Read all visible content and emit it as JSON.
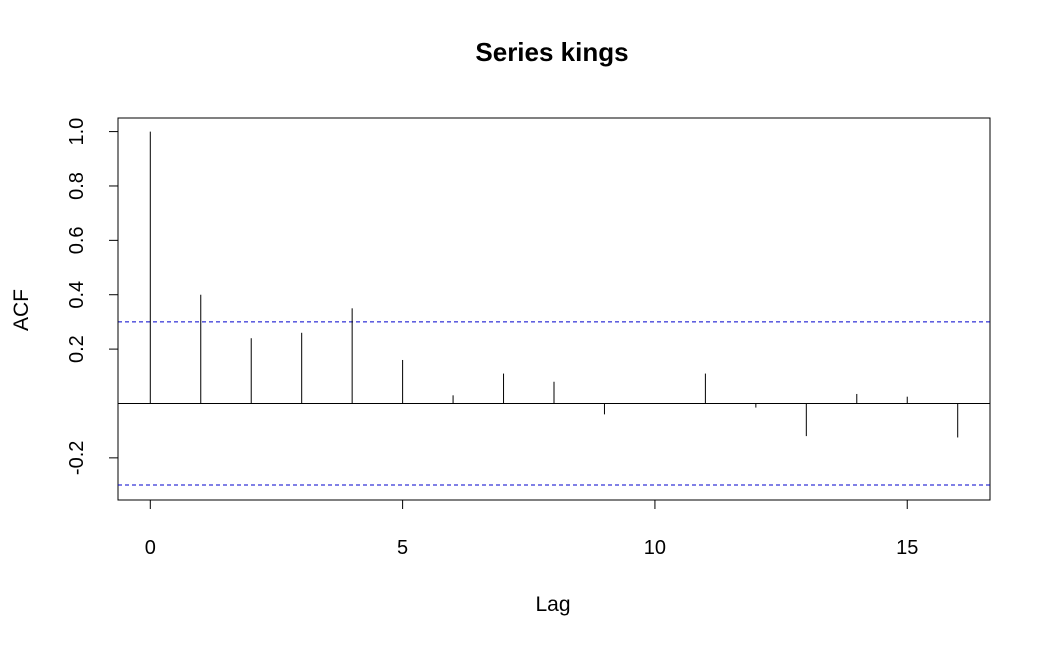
{
  "chart_data": {
    "type": "bar",
    "title": "Series  kings",
    "xlabel": "Lag",
    "ylabel": "ACF",
    "x": [
      0,
      1,
      2,
      3,
      4,
      5,
      6,
      7,
      8,
      9,
      10,
      11,
      12,
      13,
      14,
      15,
      16
    ],
    "values": [
      1.0,
      0.4,
      0.24,
      0.26,
      0.35,
      0.16,
      0.03,
      0.11,
      0.08,
      -0.04,
      0.0,
      0.11,
      -0.015,
      -0.12,
      0.035,
      0.025,
      -0.125
    ],
    "xlim": [
      -0.64,
      16.64
    ],
    "ylim": [
      -0.355,
      1.05
    ],
    "xticks": [
      0,
      5,
      10,
      15
    ],
    "xtick_labels": [
      "0",
      "5",
      "10",
      "15"
    ],
    "yticks": [
      -0.2,
      0.2,
      0.4,
      0.6,
      0.8,
      1.0
    ],
    "ytick_labels": [
      "-0.2",
      "0.2",
      "0.4",
      "0.6",
      "0.8",
      "1.0"
    ],
    "confidence_bounds": [
      0.3,
      -0.3
    ],
    "colors": {
      "bars": "#000000",
      "confidence_line": "#0000cc",
      "zero_line": "#000000"
    },
    "grid": false,
    "legend": "none"
  }
}
